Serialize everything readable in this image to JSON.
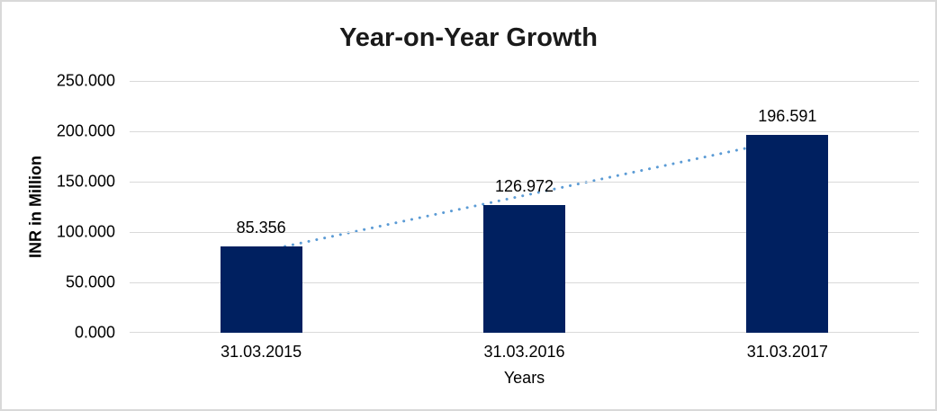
{
  "chart_data": {
    "type": "bar",
    "title": "Year-on-Year Growth",
    "xlabel": "Years",
    "ylabel": "INR in Million",
    "categories": [
      "31.03.2015",
      "31.03.2016",
      "31.03.2017"
    ],
    "values": [
      85.356,
      126.972,
      196.591
    ],
    "value_labels": [
      "85.356",
      "126.972",
      "196.591"
    ],
    "ylim": [
      0,
      250
    ],
    "ytick_labels": [
      "250.000",
      "200.000",
      "150.000",
      "100.000",
      "50.000",
      "0.000"
    ],
    "grid": "horizontal",
    "legend": "none",
    "bar_color": "#002060",
    "gridline_color": "#d9d9d9",
    "trendline": {
      "type": "linear",
      "style": "dotted",
      "color": "#5B9BD5"
    }
  }
}
